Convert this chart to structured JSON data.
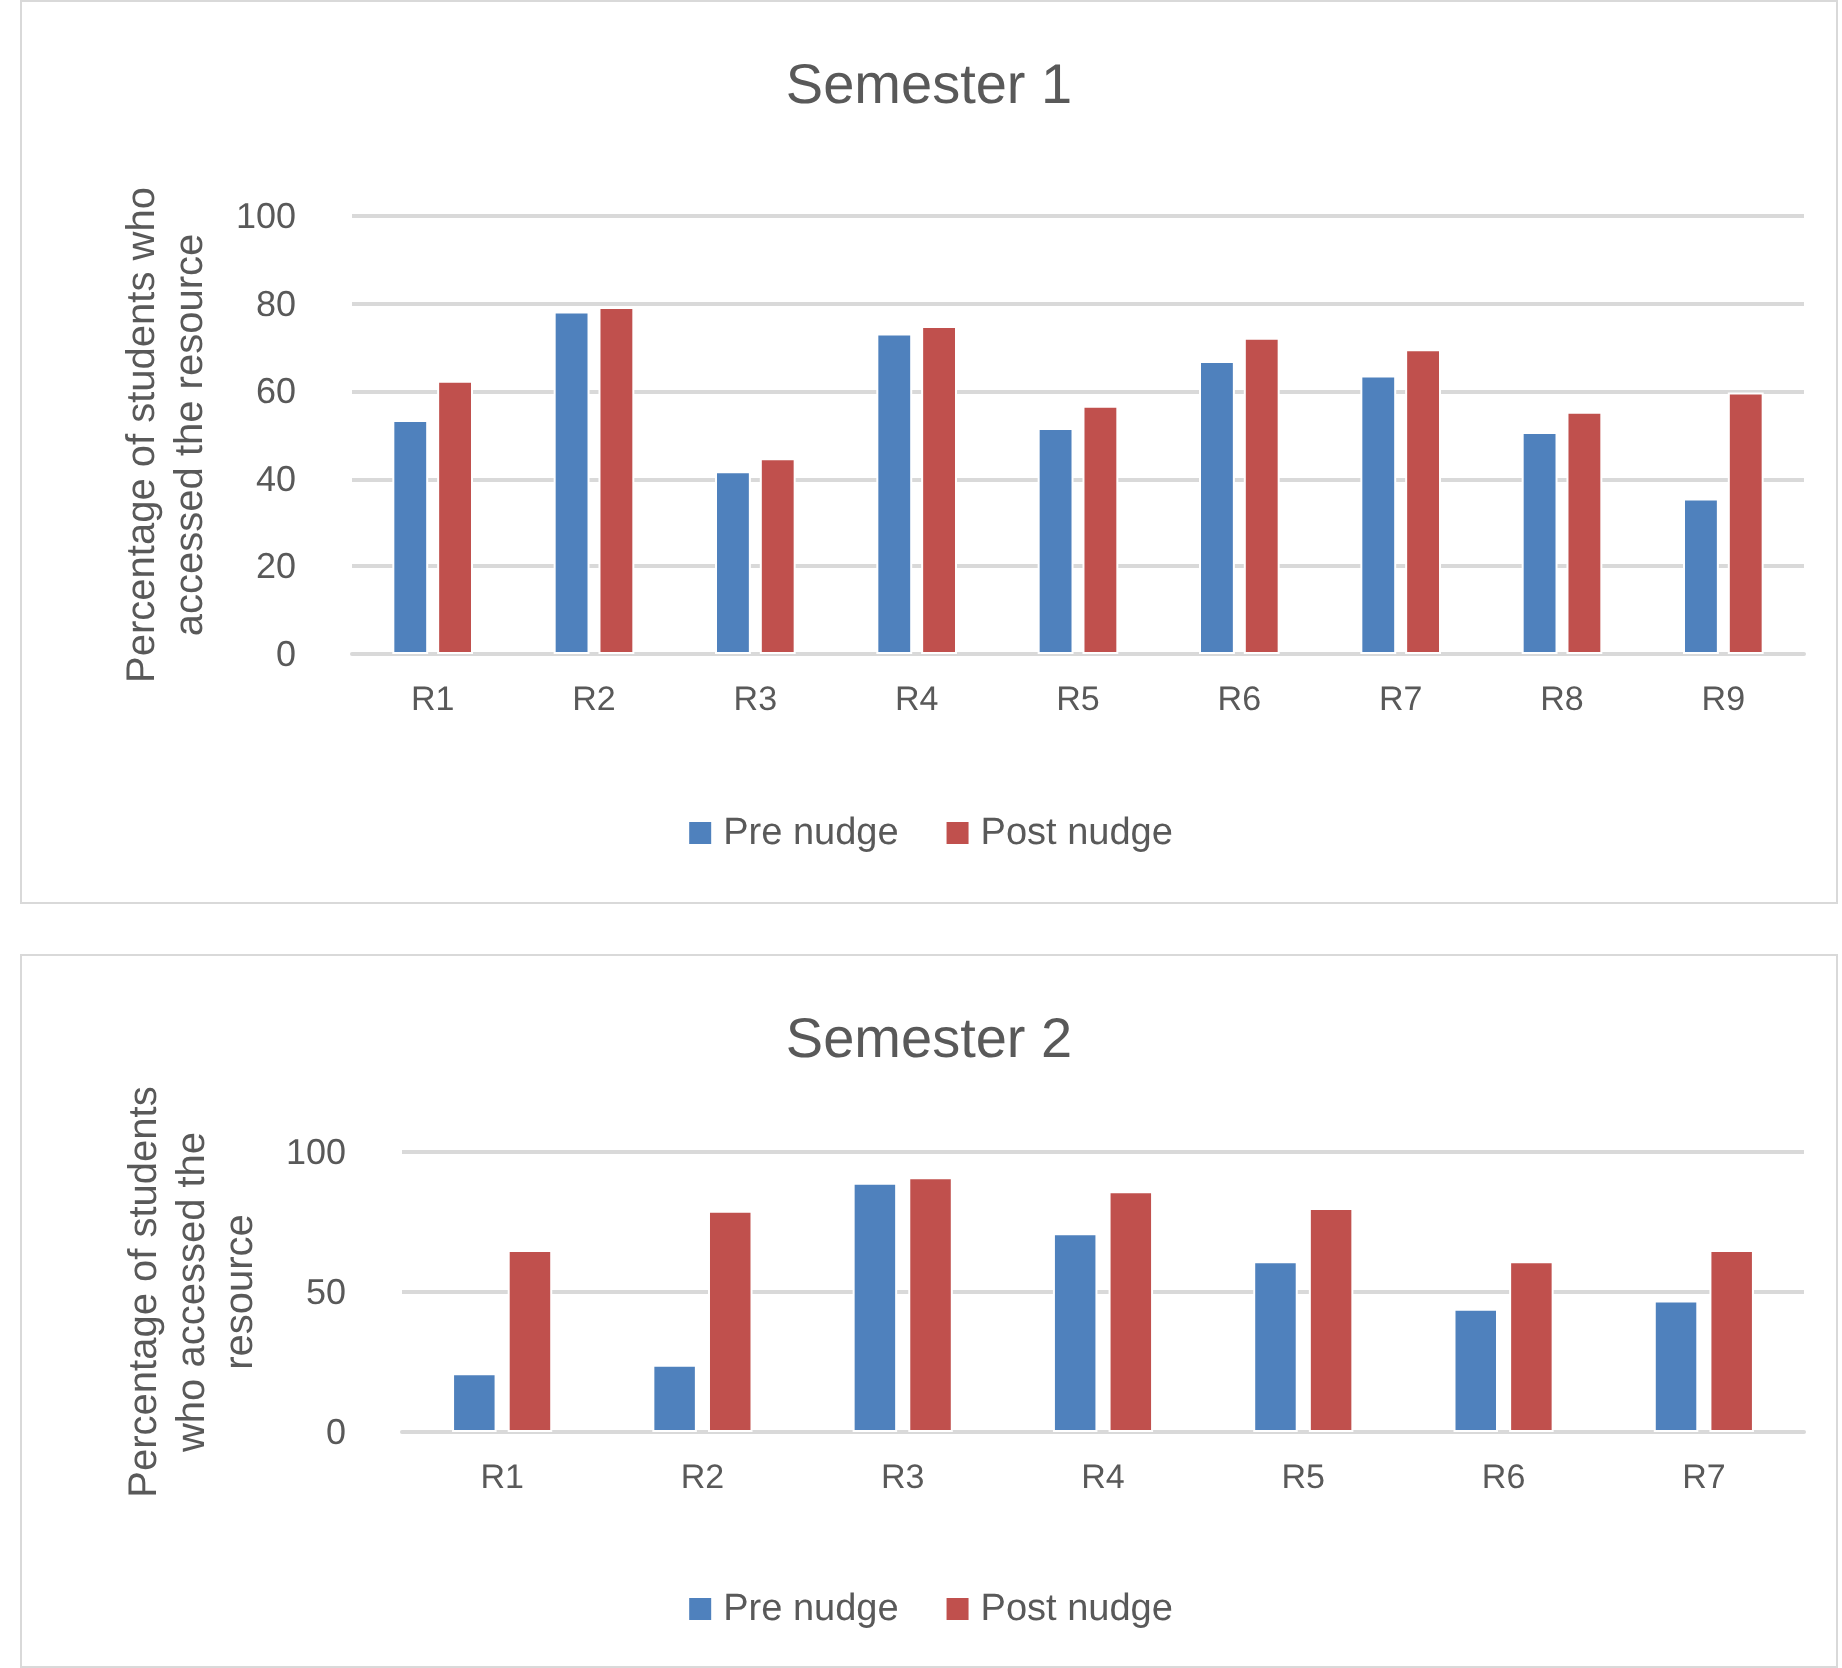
{
  "chart_data": [
    {
      "type": "bar",
      "title": "Semester 1",
      "ylabel": "Percentage of students who accessed the resource",
      "categories": [
        "R1",
        "R2",
        "R3",
        "R4",
        "R5",
        "R6",
        "R7",
        "R8",
        "R9"
      ],
      "series": [
        {
          "name": "Pre nudge",
          "color": "#4f81bd",
          "values": [
            53.4,
            78.2,
            41.7,
            73.2,
            51.6,
            66.9,
            63.6,
            50.7,
            35.5
          ]
        },
        {
          "name": "Post nudge",
          "color": "#c0504d",
          "values": [
            62.4,
            79.2,
            44.7,
            74.9,
            56.7,
            72.2,
            69.6,
            55.3,
            59.7
          ]
        }
      ],
      "ylim": [
        0,
        100
      ],
      "yticks": [
        0,
        20,
        40,
        60,
        80,
        100
      ],
      "grid": "y",
      "legend": "bottom"
    },
    {
      "type": "bar",
      "title": "Semester 2",
      "ylabel": "Percentage of students who accessed the resource",
      "categories": [
        "R1",
        "R2",
        "R3",
        "R4",
        "R5",
        "R6",
        "R7"
      ],
      "series": [
        {
          "name": "Pre nudge",
          "color": "#4f81bd",
          "values": [
            21,
            24,
            89,
            71,
            61,
            44,
            47
          ]
        },
        {
          "name": "Post nudge",
          "color": "#c0504d",
          "values": [
            65,
            79,
            91,
            86,
            80,
            61,
            65
          ]
        }
      ],
      "ylim": [
        0,
        100
      ],
      "yticks": [
        0,
        50,
        100
      ],
      "grid": "y",
      "legend": "bottom"
    }
  ]
}
